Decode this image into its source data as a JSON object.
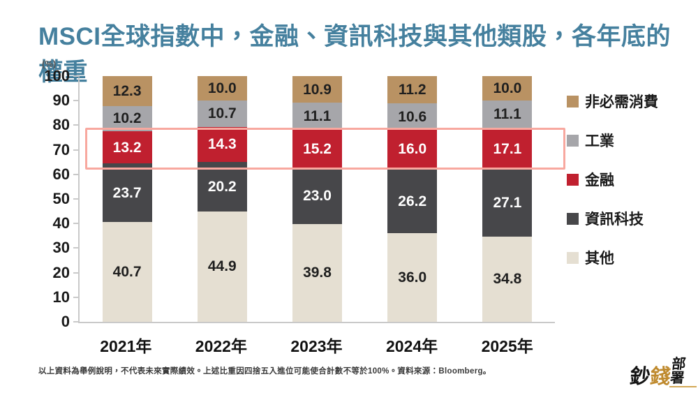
{
  "page_title": "MSCI全球指數中，金融、資訊科技與其他類股，各年底的權重",
  "chart_data": {
    "type": "bar",
    "stacked": true,
    "title": "MSCI全球指數中，金融、資訊科技與其他類股，各年底的權重",
    "unit_label": "(%)",
    "xlabel": "",
    "ylabel": "(%)",
    "ylim": [
      0,
      100
    ],
    "yticks": [
      0,
      10,
      20,
      30,
      40,
      50,
      60,
      70,
      80,
      90,
      100
    ],
    "grid": false,
    "legend_position": "right",
    "categories": [
      "2021年",
      "2022年",
      "2023年",
      "2024年",
      "2025年"
    ],
    "series": [
      {
        "name": "其他",
        "values": [
          40.7,
          44.9,
          39.8,
          36.0,
          34.8
        ],
        "color": "#e5dfd2",
        "label_color": "#1f1f1f"
      },
      {
        "name": "資訊科技",
        "values": [
          23.7,
          20.2,
          23.0,
          26.2,
          27.1
        ],
        "color": "#47474a",
        "label_color": "#ffffff"
      },
      {
        "name": "金融",
        "values": [
          13.2,
          14.3,
          15.2,
          16.0,
          17.1
        ],
        "color": "#c0202f",
        "label_color": "#ffffff"
      },
      {
        "name": "工業",
        "values": [
          10.2,
          10.7,
          11.1,
          10.6,
          11.1
        ],
        "color": "#a6a6aa",
        "label_color": "#1f1f1f"
      },
      {
        "name": "非必需消費",
        "values": [
          12.3,
          10.0,
          10.9,
          11.2,
          10.0
        ],
        "color": "#b99263",
        "label_color": "#1f1f1f"
      }
    ],
    "legend_order": [
      "非必需消費",
      "工業",
      "金融",
      "資訊科技",
      "其他"
    ],
    "highlight_band": {
      "series": "金融",
      "y_from": 62,
      "y_to": 79,
      "border_color": "#f8a89f"
    }
  },
  "footer": {
    "disclaimer": "以上資料為舉例說明，不代表未來實際績效。上述比重因四捨五入進位可能使合計數不等於100%。資料來源：Bloomberg。"
  },
  "logo": {
    "char1": "鈔",
    "char2": "錢",
    "rest": "部署"
  },
  "colors": {
    "title": "#45809e",
    "axis": "#c9c9c9",
    "highlight_border": "#f8a89f",
    "logo_gold": "#bf8a2e"
  }
}
